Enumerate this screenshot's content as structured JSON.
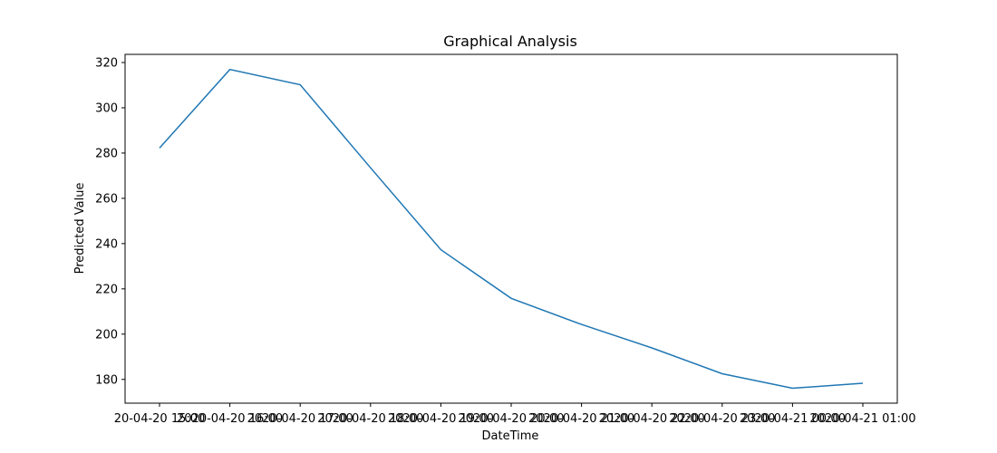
{
  "chart_data": {
    "type": "line",
    "title": "Graphical Analysis",
    "xlabel": "DateTime",
    "ylabel": "Predicted Value",
    "grid": false,
    "legend": "none",
    "x_tick_labels": [
      "20-04-20 15:00",
      "2020-04-20 16:00",
      "2020-04-20 17:00",
      "2020-04-20 18:00",
      "2020-04-20 19:00",
      "2020-04-20 20:00",
      "2020-04-20 21:00",
      "2020-04-20 22:00",
      "2020-04-20 23:00",
      "2020-04-21 00:00",
      "2020-04-21 01:00"
    ],
    "x": [
      "2020-04-20 15:00",
      "2020-04-20 16:00",
      "2020-04-20 17:00",
      "2020-04-20 18:00",
      "2020-04-20 19:00",
      "2020-04-20 20:00",
      "2020-04-20 21:00",
      "2020-04-20 22:00",
      "2020-04-20 23:00",
      "2020-04-21 00:00",
      "2020-04-21 01:00"
    ],
    "series": [
      {
        "color": "#1f77b4",
        "values": [
          282.2,
          316.9,
          310.2,
          273.5,
          237.3,
          215.8,
          204.3,
          193.9,
          182.5,
          176.1,
          178.3
        ]
      }
    ],
    "yticks": [
      180,
      200,
      220,
      240,
      260,
      280,
      300,
      320
    ],
    "ylim": [
      169.5,
      323.6
    ]
  }
}
